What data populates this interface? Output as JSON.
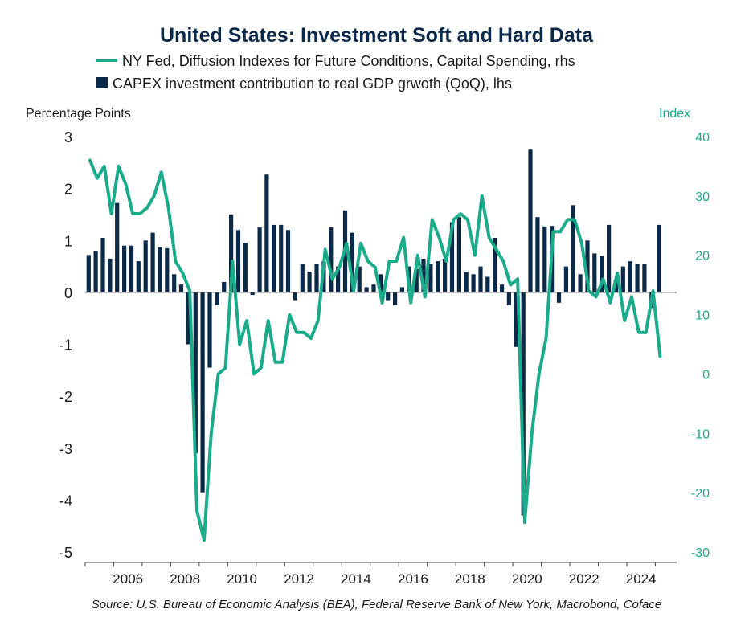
{
  "chart_data": {
    "type": "bar+line",
    "title": "United States: Investment Soft and Hard Data",
    "colors": {
      "bars": "#0b2a4a",
      "line": "#1aab8a",
      "title": "#0b2a4a"
    },
    "left_axis": {
      "label": "Percentage Points",
      "ylim": [
        -5,
        3
      ],
      "ticks": [
        "3",
        "2",
        "1",
        "0",
        "-1",
        "-2",
        "-3",
        "-4",
        "-5"
      ]
    },
    "right_axis": {
      "label": "Index",
      "ylim": [
        -30,
        40
      ],
      "ticks": [
        "40",
        "30",
        "20",
        "10",
        "0",
        "-10",
        "-20",
        "-30"
      ]
    },
    "x_axis": {
      "range": [
        2005.0,
        2025.75
      ],
      "ticks": [
        "2006",
        "2008",
        "2010",
        "2012",
        "2014",
        "2016",
        "2018",
        "2020",
        "2022",
        "2024"
      ]
    },
    "source": "Source: U.S. Bureau of Economic Analysis (BEA), Federal Reserve Bank of New York, Macrobond, Coface",
    "series": [
      {
        "name": "NY Fed, Diffusion Indexes for Future Conditions, Capital Spending, rhs",
        "type": "line",
        "axis": "right",
        "x": [
          2005.17,
          2005.42,
          2005.67,
          2005.92,
          2006.17,
          2006.42,
          2006.67,
          2006.92,
          2007.17,
          2007.42,
          2007.67,
          2007.92,
          2008.17,
          2008.42,
          2008.67,
          2008.92,
          2009.17,
          2009.42,
          2009.67,
          2009.92,
          2010.17,
          2010.42,
          2010.67,
          2010.92,
          2011.17,
          2011.42,
          2011.67,
          2011.92,
          2012.17,
          2012.42,
          2012.67,
          2012.92,
          2013.17,
          2013.42,
          2013.67,
          2013.92,
          2014.17,
          2014.42,
          2014.67,
          2014.92,
          2015.17,
          2015.42,
          2015.67,
          2015.92,
          2016.17,
          2016.42,
          2016.67,
          2016.92,
          2017.17,
          2017.42,
          2017.67,
          2017.92,
          2018.17,
          2018.42,
          2018.67,
          2018.92,
          2019.17,
          2019.42,
          2019.67,
          2019.92,
          2020.17,
          2020.42,
          2020.67,
          2020.92,
          2021.17,
          2021.42,
          2021.67,
          2021.92,
          2022.17,
          2022.42,
          2022.67,
          2022.92,
          2023.17,
          2023.42,
          2023.67,
          2023.92,
          2024.17,
          2024.42,
          2024.67,
          2024.92,
          2025.17
        ],
        "values": [
          36,
          33,
          35,
          27,
          35,
          32,
          27,
          27,
          28,
          30,
          34,
          28,
          19,
          17,
          14,
          -23,
          -28,
          -10,
          0,
          1,
          19,
          5,
          9,
          0,
          1,
          9,
          2,
          2,
          10,
          7,
          7,
          6,
          9,
          21,
          16,
          18,
          22,
          14,
          22,
          19,
          18,
          12,
          19,
          19,
          23,
          12,
          20,
          13,
          26,
          23,
          19,
          26,
          27,
          26,
          20,
          30,
          23,
          21,
          19,
          15,
          16,
          -25,
          -10,
          0,
          6,
          24,
          24,
          26,
          26,
          22,
          14,
          13,
          16,
          12,
          17,
          9,
          13,
          7,
          7,
          14,
          3
        ]
      },
      {
        "name": "CAPEX investment contribution to real GDP grwoth (QoQ), lhs",
        "type": "bar",
        "axis": "left",
        "x": [
          2005.12,
          2005.37,
          2005.62,
          2005.87,
          2006.12,
          2006.37,
          2006.62,
          2006.87,
          2007.12,
          2007.37,
          2007.62,
          2007.87,
          2008.12,
          2008.37,
          2008.62,
          2008.87,
          2009.12,
          2009.37,
          2009.62,
          2009.87,
          2010.12,
          2010.37,
          2010.62,
          2010.87,
          2011.12,
          2011.37,
          2011.62,
          2011.87,
          2012.12,
          2012.37,
          2012.62,
          2012.87,
          2013.12,
          2013.37,
          2013.62,
          2013.87,
          2014.12,
          2014.37,
          2014.62,
          2014.87,
          2015.12,
          2015.37,
          2015.62,
          2015.87,
          2016.12,
          2016.37,
          2016.62,
          2016.87,
          2017.12,
          2017.37,
          2017.62,
          2017.87,
          2018.12,
          2018.37,
          2018.62,
          2018.87,
          2019.12,
          2019.37,
          2019.62,
          2019.87,
          2020.12,
          2020.37,
          2020.62,
          2020.87,
          2021.12,
          2021.37,
          2021.62,
          2021.87,
          2022.12,
          2022.37,
          2022.62,
          2022.87,
          2023.12,
          2023.37,
          2023.62,
          2023.87,
          2024.12,
          2024.37,
          2024.62,
          2024.87,
          2025.12
        ],
        "values": [
          0.72,
          0.8,
          1.05,
          0.65,
          1.72,
          0.9,
          0.9,
          0.6,
          1.0,
          1.15,
          0.87,
          0.85,
          0.35,
          0.15,
          -1.0,
          -3.1,
          -3.85,
          -1.45,
          -0.25,
          0.2,
          1.5,
          1.2,
          0.95,
          -0.05,
          1.25,
          2.27,
          1.3,
          1.3,
          1.2,
          -0.15,
          0.55,
          0.4,
          0.55,
          0.6,
          1.25,
          0.5,
          1.58,
          1.15,
          0.5,
          0.1,
          0.15,
          0.35,
          -0.15,
          -0.25,
          0.1,
          0.5,
          0.45,
          0.65,
          0.55,
          0.6,
          0.65,
          1.35,
          1.45,
          0.4,
          0.35,
          0.5,
          0.3,
          1.05,
          0.15,
          -0.25,
          -1.05,
          -4.3,
          2.75,
          1.45,
          1.27,
          1.28,
          -0.2,
          0.5,
          1.68,
          0.35,
          1.0,
          0.75,
          0.7,
          1.3,
          0.25,
          0.5,
          0.6,
          0.55,
          0.55,
          -0.3,
          1.3
        ]
      }
    ]
  }
}
